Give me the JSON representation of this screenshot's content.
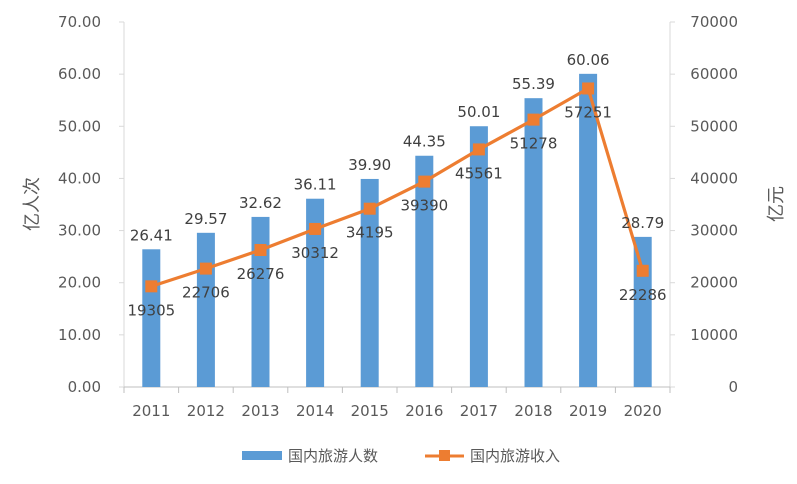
{
  "chart_data": {
    "type": "bar+line",
    "categories": [
      "2011",
      "2012",
      "2013",
      "2014",
      "2015",
      "2016",
      "2017",
      "2018",
      "2019",
      "2020"
    ],
    "series": [
      {
        "name": "国内旅游人数",
        "type": "bar",
        "axis": "left",
        "values": [
          26.41,
          29.57,
          32.62,
          36.11,
          39.9,
          44.35,
          50.01,
          55.39,
          60.06,
          28.79
        ],
        "labels": [
          "26.41",
          "29.57",
          "32.62",
          "36.11",
          "39.90",
          "44.35",
          "50.01",
          "55.39",
          "60.06",
          "28.79"
        ],
        "color": "#5B9BD5"
      },
      {
        "name": "国内旅游收入",
        "type": "line",
        "axis": "right",
        "values": [
          19305,
          22706,
          26276,
          30312,
          34195,
          39390,
          45561,
          51278,
          57251,
          22286
        ],
        "labels": [
          "19305",
          "22706",
          "26276",
          "30312",
          "34195",
          "39390",
          "45561",
          "51278",
          "57251",
          "22286"
        ],
        "color": "#ED7D31"
      }
    ],
    "y_left": {
      "label": "亿人次",
      "min": 0,
      "max": 70,
      "ticks": [
        "0.00",
        "10.00",
        "20.00",
        "30.00",
        "40.00",
        "50.00",
        "60.00",
        "70.00"
      ]
    },
    "y_right": {
      "label": "亿元",
      "min": 0,
      "max": 70000,
      "ticks": [
        "0",
        "10000",
        "20000",
        "30000",
        "40000",
        "50000",
        "60000",
        "70000"
      ]
    },
    "legend": {
      "position": "bottom",
      "items": [
        "国内旅游人数",
        "国内旅游收入"
      ]
    },
    "grid": false
  }
}
